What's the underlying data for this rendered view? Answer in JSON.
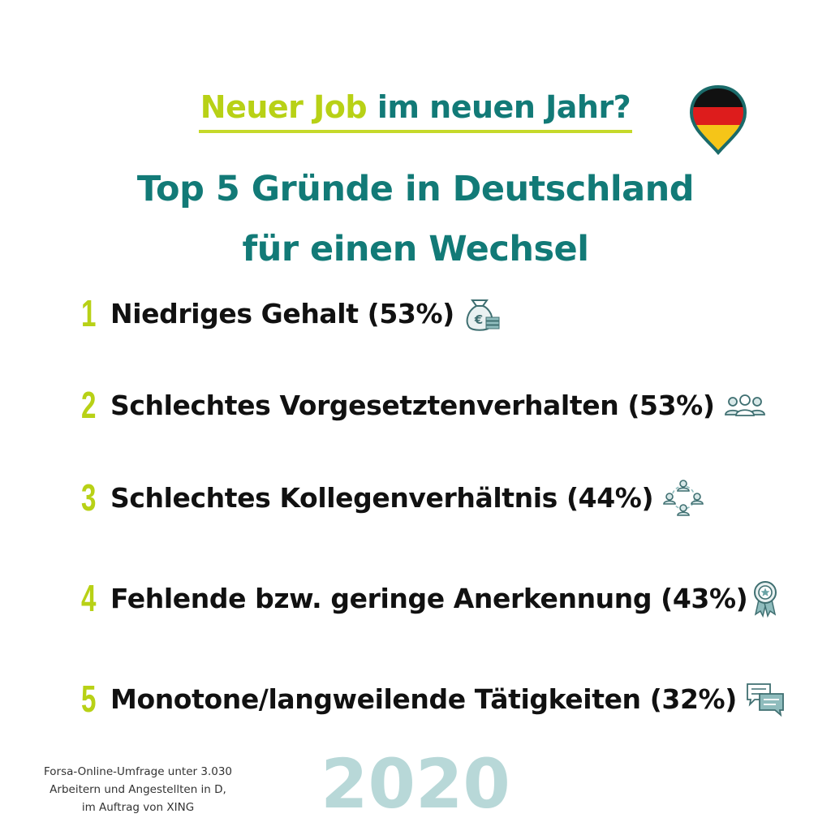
{
  "header": {
    "title_part1": "Neuer Job",
    "title_part2": "im neuen Jahr?",
    "subtitle_line1": "Top 5 Gründe in Deutschland",
    "subtitle_line2": "für einen Wechsel"
  },
  "colors": {
    "accent_green": "#b8d116",
    "teal": "#127a77",
    "year_light": "#b8d8d8",
    "icon_teal": "#6aa3a5"
  },
  "reasons": [
    {
      "rank": "1",
      "text": "Niedriges Gehalt (53%)",
      "icon": "money-bag-euro-icon"
    },
    {
      "rank": "2",
      "text": "Schlechtes Vorgesetztenverhalten (53%)",
      "icon": "people-group-icon"
    },
    {
      "rank": "3",
      "text": "Schlechtes Kollegenverhältnis (44%)",
      "icon": "team-cycle-icon"
    },
    {
      "rank": "4",
      "text": "Fehlende bzw. geringe Anerkennung (43%)",
      "icon": "award-badge-icon"
    },
    {
      "rank": "5",
      "text": "Monotone/langweilende Tätigkeiten (32%)",
      "icon": "chat-bubbles-icon"
    }
  ],
  "year": "2020",
  "source": {
    "line1": "Forsa-Online-Umfrage unter 3.030",
    "line2": "Arbeitern und Angestellten in D,",
    "line3": "im Auftrag von XING"
  }
}
